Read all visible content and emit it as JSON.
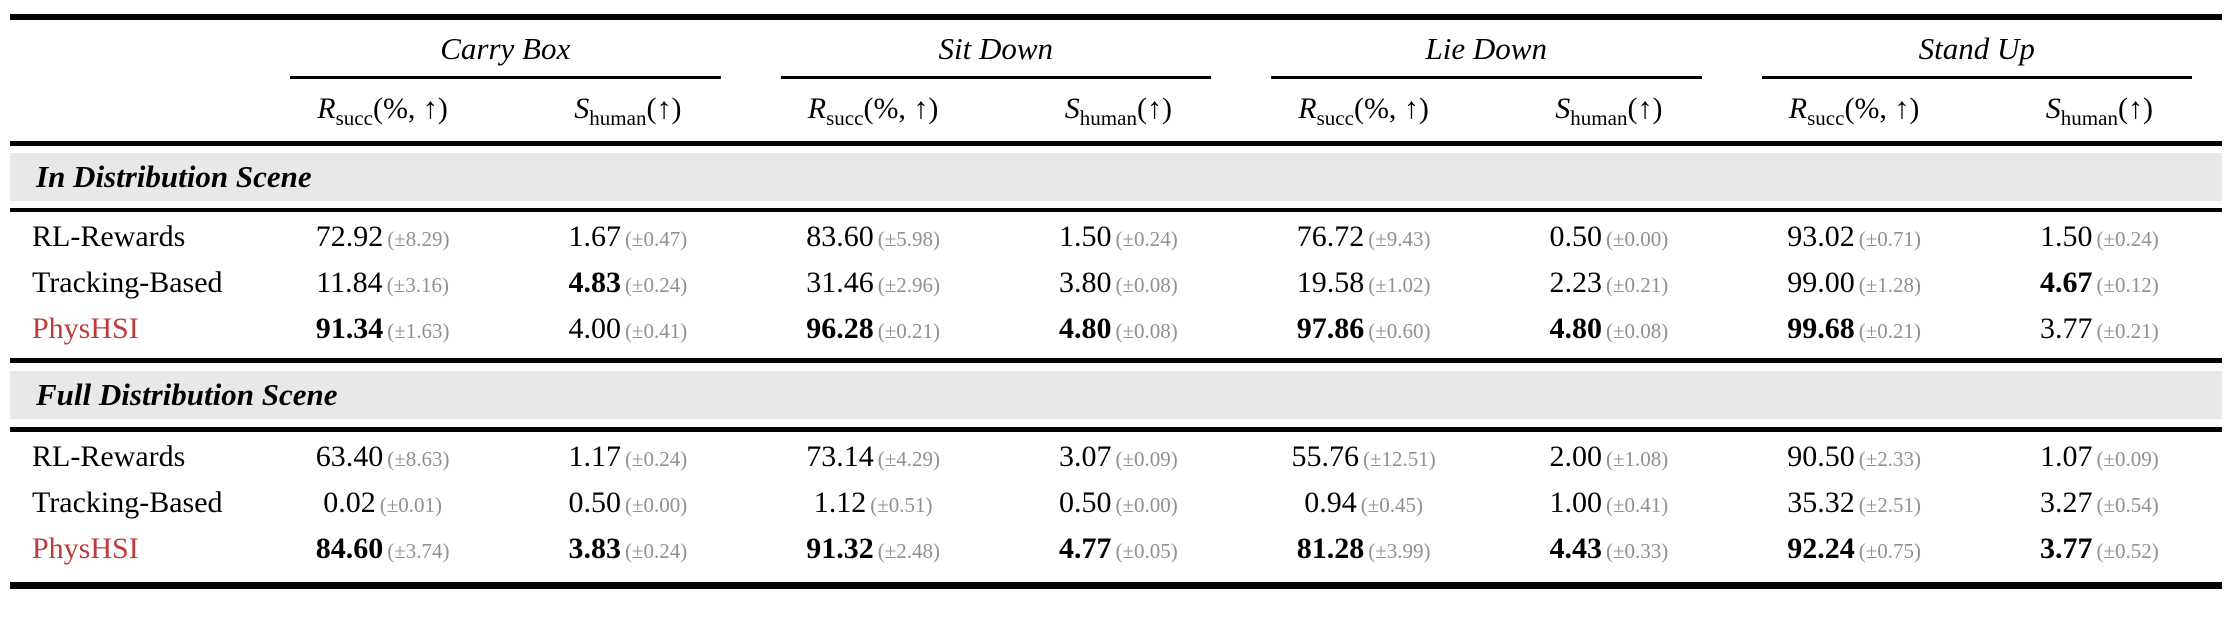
{
  "table": {
    "groups": [
      {
        "title": "Carry Box"
      },
      {
        "title": "Sit Down"
      },
      {
        "title": "Lie Down"
      },
      {
        "title": "Stand Up"
      }
    ],
    "metrics": {
      "r": {
        "base": "R",
        "sub": "succ",
        "args": "(%, ↑)"
      },
      "s": {
        "base": "S",
        "sub": "human",
        "args": "(↑)"
      }
    },
    "sections": [
      {
        "title": "In Distribution Scene",
        "rows": [
          {
            "method": "RL-Rewards",
            "accent": false,
            "cells": [
              {
                "value": "72.92",
                "std": "(±8.29)",
                "bold": false
              },
              {
                "value": "1.67",
                "std": "(±0.47)",
                "bold": false
              },
              {
                "value": "83.60",
                "std": "(±5.98)",
                "bold": false
              },
              {
                "value": "1.50",
                "std": "(±0.24)",
                "bold": false
              },
              {
                "value": "76.72",
                "std": "(±9.43)",
                "bold": false
              },
              {
                "value": "0.50",
                "std": "(±0.00)",
                "bold": false
              },
              {
                "value": "93.02",
                "std": "(±0.71)",
                "bold": false
              },
              {
                "value": "1.50",
                "std": "(±0.24)",
                "bold": false
              }
            ]
          },
          {
            "method": "Tracking-Based",
            "accent": false,
            "cells": [
              {
                "value": "11.84",
                "std": "(±3.16)",
                "bold": false
              },
              {
                "value": "4.83",
                "std": "(±0.24)",
                "bold": true
              },
              {
                "value": "31.46",
                "std": "(±2.96)",
                "bold": false
              },
              {
                "value": "3.80",
                "std": "(±0.08)",
                "bold": false
              },
              {
                "value": "19.58",
                "std": "(±1.02)",
                "bold": false
              },
              {
                "value": "2.23",
                "std": "(±0.21)",
                "bold": false
              },
              {
                "value": "99.00",
                "std": "(±1.28)",
                "bold": false
              },
              {
                "value": "4.67",
                "std": "(±0.12)",
                "bold": true
              }
            ]
          },
          {
            "method": "PhysHSI",
            "accent": true,
            "cells": [
              {
                "value": "91.34",
                "std": "(±1.63)",
                "bold": true
              },
              {
                "value": "4.00",
                "std": "(±0.41)",
                "bold": false
              },
              {
                "value": "96.28",
                "std": "(±0.21)",
                "bold": true
              },
              {
                "value": "4.80",
                "std": "(±0.08)",
                "bold": true
              },
              {
                "value": "97.86",
                "std": "(±0.60)",
                "bold": true
              },
              {
                "value": "4.80",
                "std": "(±0.08)",
                "bold": true
              },
              {
                "value": "99.68",
                "std": "(±0.21)",
                "bold": true
              },
              {
                "value": "3.77",
                "std": "(±0.21)",
                "bold": false
              }
            ]
          }
        ]
      },
      {
        "title": "Full Distribution Scene",
        "rows": [
          {
            "method": "RL-Rewards",
            "accent": false,
            "cells": [
              {
                "value": "63.40",
                "std": "(±8.63)",
                "bold": false
              },
              {
                "value": "1.17",
                "std": "(±0.24)",
                "bold": false
              },
              {
                "value": "73.14",
                "std": "(±4.29)",
                "bold": false
              },
              {
                "value": "3.07",
                "std": "(±0.09)",
                "bold": false
              },
              {
                "value": "55.76",
                "std": "(±12.51)",
                "bold": false
              },
              {
                "value": "2.00",
                "std": "(±1.08)",
                "bold": false
              },
              {
                "value": "90.50",
                "std": "(±2.33)",
                "bold": false
              },
              {
                "value": "1.07",
                "std": "(±0.09)",
                "bold": false
              }
            ]
          },
          {
            "method": "Tracking-Based",
            "accent": false,
            "cells": [
              {
                "value": "0.02",
                "std": "(±0.01)",
                "bold": false
              },
              {
                "value": "0.50",
                "std": "(±0.00)",
                "bold": false
              },
              {
                "value": "1.12",
                "std": "(±0.51)",
                "bold": false
              },
              {
                "value": "0.50",
                "std": "(±0.00)",
                "bold": false
              },
              {
                "value": "0.94",
                "std": "(±0.45)",
                "bold": false
              },
              {
                "value": "1.00",
                "std": "(±0.41)",
                "bold": false
              },
              {
                "value": "35.32",
                "std": "(±2.51)",
                "bold": false
              },
              {
                "value": "3.27",
                "std": "(±0.54)",
                "bold": false
              }
            ]
          },
          {
            "method": "PhysHSI",
            "accent": true,
            "cells": [
              {
                "value": "84.60",
                "std": "(±3.74)",
                "bold": true
              },
              {
                "value": "3.83",
                "std": "(±0.24)",
                "bold": true
              },
              {
                "value": "91.32",
                "std": "(±2.48)",
                "bold": true
              },
              {
                "value": "4.77",
                "std": "(±0.05)",
                "bold": true
              },
              {
                "value": "81.28",
                "std": "(±3.99)",
                "bold": true
              },
              {
                "value": "4.43",
                "std": "(±0.33)",
                "bold": true
              },
              {
                "value": "92.24",
                "std": "(±0.75)",
                "bold": true
              },
              {
                "value": "3.77",
                "std": "(±0.52)",
                "bold": true
              }
            ]
          }
        ]
      }
    ],
    "colors": {
      "accent_red": "#bd3b3b",
      "band_gray": "#e8e8e8",
      "std_gray": "#909090"
    }
  }
}
